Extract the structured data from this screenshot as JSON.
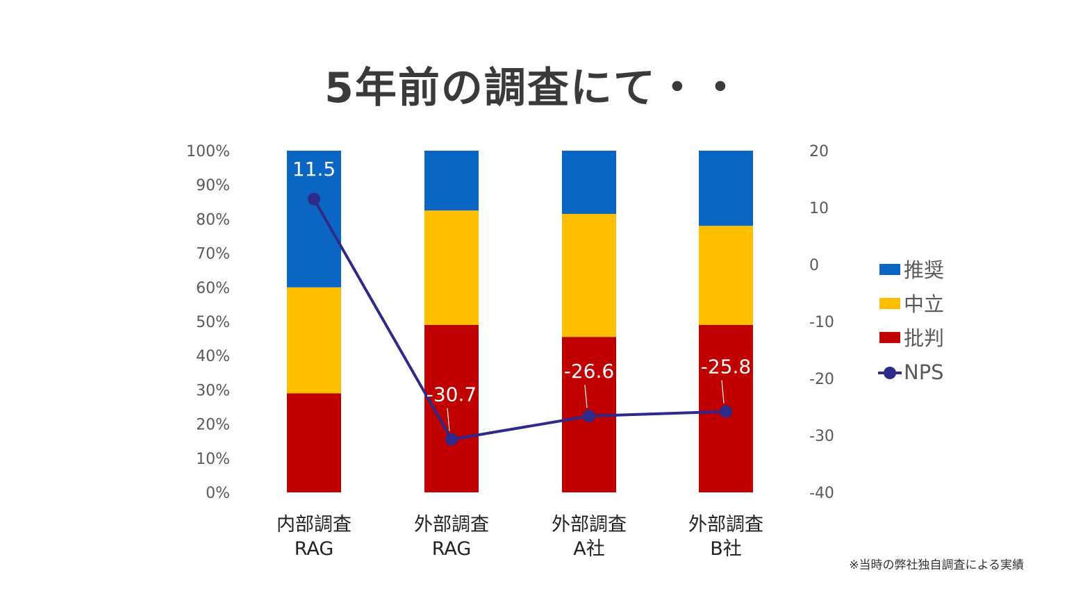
{
  "title": "5年前の調査にて・・",
  "footnote": "※当時の弊社独自調査による実績",
  "colors": {
    "promoter": "#0b66c3",
    "passive": "#fdbf00",
    "detractor": "#c00000",
    "nps_line": "#2e2a8a",
    "axis_text": "#595959",
    "label_text": "#222222"
  },
  "chart_data": {
    "type": "bar",
    "stacked": true,
    "title": "5年前の調査にて・・",
    "categories": [
      [
        "内部調査",
        "RAG"
      ],
      [
        "外部調査",
        "RAG"
      ],
      [
        "外部調査",
        "A社"
      ],
      [
        "外部調査",
        "B社"
      ]
    ],
    "series": [
      {
        "name": "批判",
        "color": "#c00000",
        "values": [
          29,
          49,
          45.5,
          49
        ]
      },
      {
        "name": "中立",
        "color": "#fdbf00",
        "values": [
          31,
          33.5,
          36,
          29
        ]
      },
      {
        "name": "推奨",
        "color": "#0b66c3",
        "values": [
          40,
          17.5,
          18.5,
          22
        ]
      }
    ],
    "line_series": {
      "name": "NPS",
      "color": "#2e2a8a",
      "values": [
        11.5,
        -30.7,
        -26.6,
        -25.8
      ],
      "labels": [
        "11.5",
        "-30.7",
        "-26.6",
        "-25.8"
      ]
    },
    "y_left": {
      "min": 0,
      "max": 100,
      "ticks": [
        "0%",
        "10%",
        "20%",
        "30%",
        "40%",
        "50%",
        "60%",
        "70%",
        "80%",
        "90%",
        "100%"
      ]
    },
    "y_right": {
      "min": -40,
      "max": 20,
      "ticks": [
        "-40",
        "-30",
        "-20",
        "-10",
        "0",
        "10",
        "20"
      ]
    },
    "legend": {
      "position": "right",
      "items": [
        {
          "label": "推奨",
          "kind": "box",
          "color": "#0b66c3"
        },
        {
          "label": "中立",
          "kind": "box",
          "color": "#fdbf00"
        },
        {
          "label": "批判",
          "kind": "box",
          "color": "#c00000"
        },
        {
          "label": "NPS",
          "kind": "line",
          "color": "#2e2a8a"
        }
      ]
    },
    "grid": false
  }
}
